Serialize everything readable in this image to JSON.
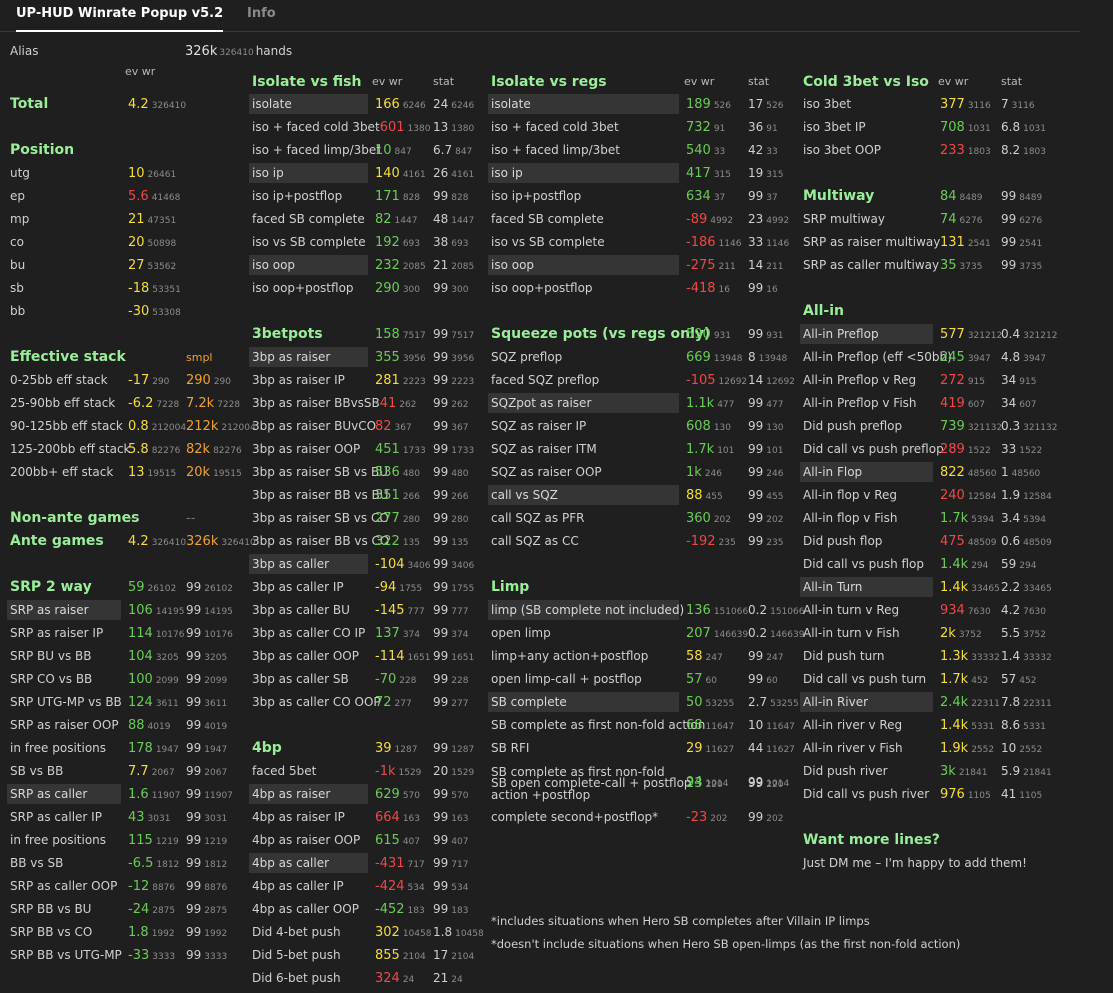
{
  "tabs": [
    "UP-HUD Winrate Popup v5.2",
    "Info"
  ],
  "alias": {
    "label": "Alias",
    "hands_value": "326k",
    "hands_sub": "326410",
    "hands_word": "hands"
  },
  "col_headers": {
    "ev_wr": "ev wr",
    "stat": "stat",
    "smpl": "smpl"
  },
  "col1": [
    {
      "t": "h",
      "l": "Total",
      "v": "4.2",
      "vs": "326410",
      "vc": "y"
    },
    {
      "t": "h",
      "l": "Position"
    },
    {
      "l": "utg",
      "v": "10",
      "vs": "26461",
      "vc": "y"
    },
    {
      "l": "ep",
      "v": "5.6",
      "vs": "41468",
      "vc": "rd"
    },
    {
      "l": "mp",
      "v": "21",
      "vs": "47351",
      "vc": "y"
    },
    {
      "l": "co",
      "v": "20",
      "vs": "50898",
      "vc": "y"
    },
    {
      "l": "bu",
      "v": "27",
      "vs": "53562",
      "vc": "y"
    },
    {
      "l": "sb",
      "v": "-18",
      "vs": "53351",
      "vc": "y"
    },
    {
      "l": "bb",
      "v": "-30",
      "vs": "53308",
      "vc": "y"
    },
    {
      "t": "h",
      "l": "Effective stack",
      "k": "smpl"
    },
    {
      "l": "0-25bb eff stack",
      "v": "-17",
      "vs": "290",
      "vc": "y",
      "k": "290",
      "ks": "290"
    },
    {
      "l": "25-90bb eff stack",
      "v": "-6.2",
      "vs": "7228",
      "vc": "y",
      "k": "7.2k",
      "ks": "7228"
    },
    {
      "l": "90-125bb eff stack",
      "v": "0.8",
      "vs": "212004",
      "vc": "y",
      "k": "212k",
      "ks": "212004"
    },
    {
      "l": "125-200bb eff stack",
      "v": "5.8",
      "vs": "82276",
      "vc": "y",
      "k": "82k",
      "ks": "82276"
    },
    {
      "l": "200bb+ eff stack",
      "v": "13",
      "vs": "19515",
      "vc": "y",
      "k": "20k",
      "ks": "19515"
    },
    {
      "t": "h",
      "l": "Non-ante games",
      "v": "--",
      "vc": "gy",
      "k": "--"
    },
    {
      "t": "h",
      "l": "Ante games",
      "v": "4.2",
      "vs": "326410",
      "vc": "y",
      "k": "326k",
      "ks": "326410"
    },
    {
      "t": "h",
      "l": "SRP 2 way",
      "v": "59",
      "vs": "26102",
      "vc": "g",
      "st": "99",
      "ss": "26102"
    },
    {
      "hl": 1,
      "l": "SRP as raiser",
      "v": "106",
      "vs": "14195",
      "vc": "g",
      "st": "99",
      "ss": "14195"
    },
    {
      "l": "SRP as raiser IP",
      "v": "114",
      "vs": "10176",
      "vc": "g",
      "st": "99",
      "ss": "10176"
    },
    {
      "l": "SRP BU vs BB",
      "v": "104",
      "vs": "3205",
      "vc": "g",
      "st": "99",
      "ss": "3205"
    },
    {
      "l": "SRP CO vs BB",
      "v": "100",
      "vs": "2099",
      "vc": "g",
      "st": "99",
      "ss": "2099"
    },
    {
      "l": "SRP UTG-MP vs BB",
      "v": "124",
      "vs": "3611",
      "vc": "g",
      "st": "99",
      "ss": "3611"
    },
    {
      "l": "SRP as raiser OOP",
      "v": "88",
      "vs": "4019",
      "vc": "g",
      "st": "99",
      "ss": "4019"
    },
    {
      "l": "in free positions",
      "v": "178",
      "vs": "1947",
      "vc": "g",
      "st": "99",
      "ss": "1947"
    },
    {
      "l": "SB vs BB",
      "v": "7.7",
      "vs": "2067",
      "vc": "y",
      "st": "99",
      "ss": "2067"
    },
    {
      "hl": 1,
      "l": "SRP as caller",
      "v": "1.6",
      "vs": "11907",
      "vc": "g",
      "st": "99",
      "ss": "11907"
    },
    {
      "l": "SRP as caller IP",
      "v": "43",
      "vs": "3031",
      "vc": "g",
      "st": "99",
      "ss": "3031"
    },
    {
      "l": "in free positions",
      "v": "115",
      "vs": "1219",
      "vc": "g",
      "st": "99",
      "ss": "1219"
    },
    {
      "l": "BB vs SB",
      "v": "-6.5",
      "vs": "1812",
      "vc": "g",
      "st": "99",
      "ss": "1812"
    },
    {
      "l": "SRP as caller OOP",
      "v": "-12",
      "vs": "8876",
      "vc": "g",
      "st": "99",
      "ss": "8876"
    },
    {
      "l": "SRP BB vs BU",
      "v": "-24",
      "vs": "2875",
      "vc": "g",
      "st": "99",
      "ss": "2875"
    },
    {
      "l": "SRP BB vs CO",
      "v": "1.8",
      "vs": "1992",
      "vc": "g",
      "st": "99",
      "ss": "1992"
    },
    {
      "l": "SRP BB vs  UTG-MP",
      "v": "-33",
      "vs": "3333",
      "vc": "g",
      "st": "99",
      "ss": "3333"
    }
  ],
  "col2": [
    {
      "t": "h",
      "l": "Isolate vs fish",
      "hdr": 1
    },
    {
      "hl": 1,
      "l": "isolate",
      "v": "166",
      "vs": "6246",
      "vc": "y",
      "st": "24",
      "ss": "6246"
    },
    {
      "l": "iso + faced cold 3bet",
      "v": "-601",
      "vs": "1380",
      "vc": "rd",
      "st": "13",
      "ss": "1380"
    },
    {
      "l": "iso + faced limp/3bet",
      "v": "10",
      "vs": "847",
      "vc": "g",
      "st": "6.7",
      "ss": "847"
    },
    {
      "hl": 1,
      "l": "iso ip",
      "v": "140",
      "vs": "4161",
      "vc": "y",
      "st": "26",
      "ss": "4161"
    },
    {
      "l": "iso ip+postflop",
      "v": "171",
      "vs": "828",
      "vc": "g",
      "st": "99",
      "ss": "828"
    },
    {
      "l": "faced SB complete",
      "v": "82",
      "vs": "1447",
      "vc": "g",
      "st": "48",
      "ss": "1447"
    },
    {
      "l": "iso vs SB complete",
      "v": "192",
      "vs": "693",
      "vc": "g",
      "st": "38",
      "ss": "693"
    },
    {
      "hl": 1,
      "l": "iso oop",
      "v": "232",
      "vs": "2085",
      "vc": "g",
      "st": "21",
      "ss": "2085"
    },
    {
      "l": "iso oop+postflop",
      "v": "290",
      "vs": "300",
      "vc": "g",
      "st": "99",
      "ss": "300"
    },
    {
      "t": "h",
      "l": "3betpots",
      "v": "158",
      "vs": "7517",
      "vc": "g",
      "st": "99",
      "ss": "7517"
    },
    {
      "hl": 1,
      "l": "3bp as raiser",
      "v": "355",
      "vs": "3956",
      "vc": "g",
      "st": "99",
      "ss": "3956"
    },
    {
      "l": "3bp as raiser IP",
      "v": "281",
      "vs": "2223",
      "vc": "y",
      "st": "99",
      "ss": "2223"
    },
    {
      "l": "3bp as raiser BBvsSB",
      "v": "-41",
      "vs": "262",
      "vc": "rd",
      "st": "99",
      "ss": "262"
    },
    {
      "l": "3bp as raiser BUvCO",
      "v": "82",
      "vs": "367",
      "vc": "rd",
      "st": "99",
      "ss": "367"
    },
    {
      "l": "3bp as raiser OOP",
      "v": "451",
      "vs": "1733",
      "vc": "g",
      "st": "99",
      "ss": "1733"
    },
    {
      "l": "3bp as raiser SB vs BU",
      "v": "536",
      "vs": "480",
      "vc": "g",
      "st": "99",
      "ss": "480"
    },
    {
      "l": "3bp as raiser BB vs BU",
      "v": "351",
      "vs": "266",
      "vc": "g",
      "st": "99",
      "ss": "266"
    },
    {
      "l": "3bp as raiser SB vs CO",
      "v": "277",
      "vs": "280",
      "vc": "g",
      "st": "99",
      "ss": "280"
    },
    {
      "l": "3bp as raiser BB vs CO",
      "v": "322",
      "vs": "135",
      "vc": "g",
      "st": "99",
      "ss": "135"
    },
    {
      "hl": 1,
      "l": "3bp as caller",
      "v": "-104",
      "vs": "3406",
      "vc": "y",
      "st": "99",
      "ss": "3406"
    },
    {
      "l": "3bp as caller IP",
      "v": "-94",
      "vs": "1755",
      "vc": "y",
      "st": "99",
      "ss": "1755"
    },
    {
      "l": "3bp as caller BU",
      "v": "-145",
      "vs": "777",
      "vc": "y",
      "st": "99",
      "ss": "777"
    },
    {
      "l": "3bp as caller CO IP",
      "v": "137",
      "vs": "374",
      "vc": "g",
      "st": "99",
      "ss": "374"
    },
    {
      "l": "3bp as caller OOP",
      "v": "-114",
      "vs": "1651",
      "vc": "y",
      "st": "99",
      "ss": "1651"
    },
    {
      "l": "3bp as caller SB",
      "v": "-70",
      "vs": "228",
      "vc": "g",
      "st": "99",
      "ss": "228"
    },
    {
      "l": "3bp as caller CO OOP",
      "v": "72",
      "vs": "277",
      "vc": "g",
      "st": "99",
      "ss": "277"
    },
    {
      "t": "h",
      "l": "4bp",
      "v": "39",
      "vs": "1287",
      "vc": "y",
      "st": "99",
      "ss": "1287"
    },
    {
      "l": "faced 5bet",
      "v": "-1k",
      "vs": "1529",
      "vc": "rd",
      "st": "20",
      "ss": "1529"
    },
    {
      "hl": 1,
      "l": "4bp as raiser",
      "v": "629",
      "vs": "570",
      "vc": "g",
      "st": "99",
      "ss": "570"
    },
    {
      "l": "4bp as raiser IP",
      "v": "664",
      "vs": "163",
      "vc": "rd",
      "st": "99",
      "ss": "163"
    },
    {
      "l": "4bp as raiser OOP",
      "v": "615",
      "vs": "407",
      "vc": "g",
      "st": "99",
      "ss": "407"
    },
    {
      "hl": 1,
      "l": "4bp as caller",
      "v": "-431",
      "vs": "717",
      "vc": "rd",
      "st": "99",
      "ss": "717"
    },
    {
      "l": "4bp as caller IP",
      "v": "-424",
      "vs": "534",
      "vc": "rd",
      "st": "99",
      "ss": "534"
    },
    {
      "l": "4bp as caller OOP",
      "v": "-452",
      "vs": "183",
      "vc": "g",
      "st": "99",
      "ss": "183"
    },
    {
      "l": "Did 4-bet push",
      "v": "302",
      "vs": "10458",
      "vc": "y",
      "st": "1.8",
      "ss": "10458"
    },
    {
      "l": "Did 5-bet push",
      "v": "855",
      "vs": "2104",
      "vc": "y",
      "st": "17",
      "ss": "2104"
    },
    {
      "l": "Did 6-bet push",
      "v": "324",
      "vs": "24",
      "vc": "rd",
      "st": "21",
      "ss": "24"
    }
  ],
  "col3": [
    {
      "t": "h",
      "l": "Isolate vs regs",
      "hdr": 1
    },
    {
      "hl": 1,
      "l": "isolate",
      "v": "189",
      "vs": "526",
      "vc": "g",
      "st": "17",
      "ss": "526"
    },
    {
      "l": "iso + faced cold 3bet",
      "v": "732",
      "vs": "91",
      "vc": "g",
      "st": "36",
      "ss": "91"
    },
    {
      "l": "iso + faced limp/3bet",
      "v": "540",
      "vs": "33",
      "vc": "g",
      "st": "42",
      "ss": "33"
    },
    {
      "hl": 1,
      "l": "iso ip",
      "v": "417",
      "vs": "315",
      "vc": "g",
      "st": "19",
      "ss": "315"
    },
    {
      "l": "iso ip+postflop",
      "v": "634",
      "vs": "37",
      "vc": "g",
      "st": "99",
      "ss": "37"
    },
    {
      "l": "faced SB complete",
      "v": "-89",
      "vs": "4992",
      "vc": "rd",
      "st": "23",
      "ss": "4992"
    },
    {
      "l": "iso vs SB complete",
      "v": "-186",
      "vs": "1146",
      "vc": "rd",
      "st": "33",
      "ss": "1146"
    },
    {
      "hl": 1,
      "l": "iso oop",
      "v": "-275",
      "vs": "211",
      "vc": "rd",
      "st": "14",
      "ss": "211"
    },
    {
      "l": "iso oop+postflop",
      "v": "-418",
      "vs": "16",
      "vc": "rd",
      "st": "99",
      "ss": "16"
    },
    {
      "t": "h",
      "l": "Squeeze pots (vs regs only)",
      "v": "590",
      "vs": "931",
      "vc": "g",
      "st": "99",
      "ss": "931"
    },
    {
      "l": "SQZ preflop",
      "v": "669",
      "vs": "13948",
      "vc": "g",
      "st": "8",
      "ss": "13948"
    },
    {
      "l": "faced SQZ preflop",
      "v": "-105",
      "vs": "12692",
      "vc": "rd",
      "st": "14",
      "ss": "12692"
    },
    {
      "hl": 1,
      "l": "SQZpot as raiser",
      "v": "1.1k",
      "vs": "477",
      "vc": "g",
      "st": "99",
      "ss": "477"
    },
    {
      "l": "SQZ as raiser IP",
      "v": "608",
      "vs": "130",
      "vc": "g",
      "st": "99",
      "ss": "130"
    },
    {
      "l": "SQZ as raiser ITM",
      "v": "1.7k",
      "vs": "101",
      "vc": "g",
      "st": "99",
      "ss": "101"
    },
    {
      "l": "SQZ as raiser OOP",
      "v": "1k",
      "vs": "246",
      "vc": "g",
      "st": "99",
      "ss": "246"
    },
    {
      "hl": 1,
      "l": "call vs SQZ",
      "v": "88",
      "vs": "455",
      "vc": "y",
      "st": "99",
      "ss": "455"
    },
    {
      "l": "call SQZ as PFR",
      "v": "360",
      "vs": "202",
      "vc": "g",
      "st": "99",
      "ss": "202"
    },
    {
      "l": "call SQZ as CC",
      "v": "-192",
      "vs": "235",
      "vc": "rd",
      "st": "99",
      "ss": "235"
    },
    {
      "t": "h",
      "l": "Limp"
    },
    {
      "hl": 1,
      "l": "limp (SB complete not included)",
      "v": "136",
      "vs": "151066",
      "vc": "g",
      "st": "0.2",
      "ss": "151066"
    },
    {
      "l": "open limp",
      "v": "207",
      "vs": "146639",
      "vc": "g",
      "st": "0.2",
      "ss": "146639"
    },
    {
      "l": "limp+any action+postflop",
      "v": "58",
      "vs": "247",
      "vc": "y",
      "st": "99",
      "ss": "247"
    },
    {
      "l": "open limp-call + postflop",
      "v": "57",
      "vs": "60",
      "vc": "g",
      "st": "99",
      "ss": "60"
    },
    {
      "hl": 1,
      "l": "SB complete",
      "v": "50",
      "vs": "53255",
      "vc": "g",
      "st": "2.7",
      "ss": "53255"
    },
    {
      "l": "SB complete as first non-fold action",
      "v": "68",
      "vs": "11647",
      "vc": "g",
      "st": "10",
      "ss": "11647"
    },
    {
      "l": "SB RFI",
      "v": "29",
      "vs": "11627",
      "vc": "y",
      "st": "44",
      "ss": "11627"
    },
    {
      "l": "SB complete as first non-fold action +postflop",
      "v": "94",
      "vs": "1014",
      "vc": "g",
      "st": "99",
      "ss": "1014",
      "two": 1
    },
    {
      "l": "SB open complete-call + postflop",
      "v": "23",
      "vs": "220",
      "vc": "g",
      "st": "99",
      "ss": "220"
    },
    {
      "l": "complete second+postflop*",
      "v": "-23",
      "vs": "202",
      "vc": "rd",
      "st": "99",
      "ss": "202"
    }
  ],
  "col4": [
    {
      "t": "h",
      "l": "Cold 3bet vs Iso",
      "hdr": 1
    },
    {
      "l": "iso 3bet",
      "v": "377",
      "vs": "3116",
      "vc": "y",
      "st": "7",
      "ss": "3116"
    },
    {
      "l": "iso 3bet IP",
      "v": "708",
      "vs": "1031",
      "vc": "g",
      "st": "6.8",
      "ss": "1031"
    },
    {
      "l": "iso 3bet OOP",
      "v": "233",
      "vs": "1803",
      "vc": "rd",
      "st": "8.2",
      "ss": "1803"
    },
    {
      "t": "h",
      "l": "Multiway",
      "v": "84",
      "vs": "8489",
      "vc": "g",
      "st": "99",
      "ss": "8489"
    },
    {
      "l": "SRP multiway",
      "v": "74",
      "vs": "6276",
      "vc": "g",
      "st": "99",
      "ss": "6276"
    },
    {
      "l": "SRP as raiser multiway",
      "v": "131",
      "vs": "2541",
      "vc": "y",
      "st": "99",
      "ss": "2541"
    },
    {
      "l": "SRP as caller multiway",
      "v": "35",
      "vs": "3735",
      "vc": "g",
      "st": "99",
      "ss": "3735"
    },
    {
      "t": "h",
      "l": "All-in"
    },
    {
      "hl": 1,
      "l": "All-in Preflop",
      "v": "577",
      "vs": "321212",
      "vc": "y",
      "st": "0.4",
      "ss": "321212"
    },
    {
      "l": "All-in Preflop (eff <50bb)",
      "v": "245",
      "vs": "3947",
      "vc": "g",
      "st": "4.8",
      "ss": "3947"
    },
    {
      "l": "All-in Preflop v Reg",
      "v": "272",
      "vs": "915",
      "vc": "rd",
      "st": "34",
      "ss": "915"
    },
    {
      "l": "All-in Preflop v Fish",
      "v": "419",
      "vs": "607",
      "vc": "rd",
      "st": "34",
      "ss": "607"
    },
    {
      "l": "Did push preflop",
      "v": "739",
      "vs": "321132",
      "vc": "g",
      "st": "0.3",
      "ss": "321132"
    },
    {
      "l": "Did call vs push preflop",
      "v": "289",
      "vs": "1522",
      "vc": "rd",
      "st": "33",
      "ss": "1522"
    },
    {
      "hl": 1,
      "l": "All-in Flop",
      "v": "822",
      "vs": "48560",
      "vc": "y",
      "st": "1",
      "ss": "48560"
    },
    {
      "l": "All-in flop v Reg",
      "v": "240",
      "vs": "12584",
      "vc": "rd",
      "st": "1.9",
      "ss": "12584"
    },
    {
      "l": "All-in flop v Fish",
      "v": "1.7k",
      "vs": "5394",
      "vc": "g",
      "st": "3.4",
      "ss": "5394"
    },
    {
      "l": "Did push flop",
      "v": "475",
      "vs": "48509",
      "vc": "rd",
      "st": "0.6",
      "ss": "48509"
    },
    {
      "l": "Did call vs push flop",
      "v": "1.4k",
      "vs": "294",
      "vc": "g",
      "st": "59",
      "ss": "294"
    },
    {
      "hl": 1,
      "l": "All-in Turn",
      "v": "1.4k",
      "vs": "33465",
      "vc": "y",
      "st": "2.2",
      "ss": "33465"
    },
    {
      "l": "All-in turn v Reg",
      "v": "934",
      "vs": "7630",
      "vc": "rd",
      "st": "4.2",
      "ss": "7630"
    },
    {
      "l": "All-in turn v Fish",
      "v": "2k",
      "vs": "3752",
      "vc": "y",
      "st": "5.5",
      "ss": "3752"
    },
    {
      "l": "Did push turn",
      "v": "1.3k",
      "vs": "33332",
      "vc": "y",
      "st": "1.4",
      "ss": "33332"
    },
    {
      "l": "Did call vs push turn",
      "v": "1.7k",
      "vs": "452",
      "vc": "y",
      "st": "57",
      "ss": "452"
    },
    {
      "hl": 1,
      "l": "All-in River",
      "v": "2.4k",
      "vs": "22311",
      "vc": "g",
      "st": "7.8",
      "ss": "22311"
    },
    {
      "l": "All-in river v Reg",
      "v": "1.4k",
      "vs": "5331",
      "vc": "y",
      "st": "8.6",
      "ss": "5331"
    },
    {
      "l": "All-in river v Fish",
      "v": "1.9k",
      "vs": "2552",
      "vc": "y",
      "st": "10",
      "ss": "2552"
    },
    {
      "l": "Did push river",
      "v": "3k",
      "vs": "21841",
      "vc": "g",
      "st": "5.9",
      "ss": "21841"
    },
    {
      "l": "Did call vs push river",
      "v": "976",
      "vs": "1105",
      "vc": "y",
      "st": "41",
      "ss": "1105"
    },
    {
      "t": "h",
      "l": "Want more lines?"
    },
    {
      "l": "Just DM me – I'm happy to add them!"
    }
  ],
  "notes": [
    "*includes situations when Hero SB completes after Villain IP limps",
    "*doesn't include situations when Hero SB open-limps (as the first non-fold action)"
  ],
  "colors": {
    "green": "#6bcc55",
    "yellow": "#f5dd3a",
    "red": "#f04747",
    "orange": "#f0a030",
    "header": "#9aee9a"
  }
}
